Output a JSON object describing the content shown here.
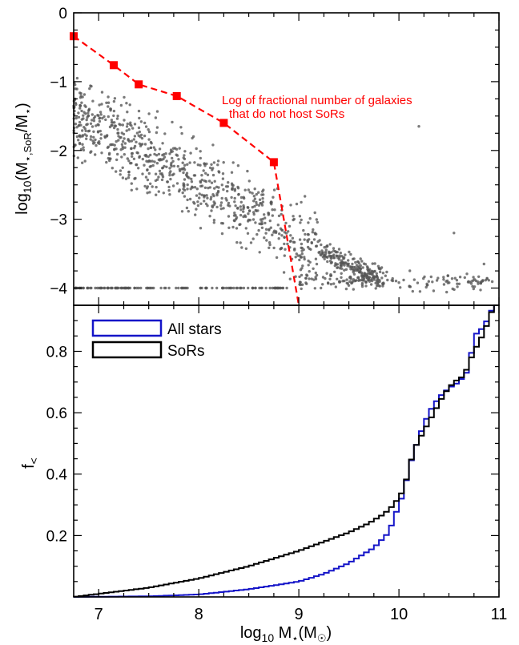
{
  "chart_data": [
    {
      "type": "scatter",
      "panel": "top",
      "ylabel": "log10(M⋆,SoR/M⋆)",
      "xlim": [
        6.75,
        11.0
      ],
      "ylim": [
        -4.25,
        0
      ],
      "yticks": [
        "0",
        "−1",
        "−2",
        "−3",
        "−4"
      ],
      "grid": false,
      "annotation": [
        "Log of fractional number of galaxies",
        "that do not host SoRs"
      ],
      "colors": {
        "points": "#555555",
        "line": "#ff0000"
      },
      "scatter_note": "about 1300 grey points; dense cloud declining from (6.8, −1.5) to (9.5, −3.8), floor row at y = −4 for x 6.75–8.9, sparse points x 9–11 near −3.7 to −4.0",
      "series": [
        {
          "name": "Log of fractional number of galaxies that do not host SoRs",
          "x": [
            6.75,
            7.15,
            7.4,
            7.78,
            8.25,
            8.75,
            9.0
          ],
          "y": [
            -0.34,
            -0.76,
            -1.04,
            -1.21,
            -1.6,
            -2.17,
            -4.25
          ]
        }
      ]
    },
    {
      "type": "line",
      "panel": "bottom",
      "xlabel": "log10 M⋆(M☉)",
      "ylabel": "f<",
      "xlim": [
        6.75,
        11.0
      ],
      "ylim": [
        0,
        0.95
      ],
      "xticks": [
        "7",
        "8",
        "9",
        "10",
        "11"
      ],
      "yticks": [
        "0.2",
        "0.4",
        "0.6",
        "0.8"
      ],
      "legend": {
        "position": "top-left",
        "entries": [
          "All stars",
          "SoRs"
        ]
      },
      "grid": false,
      "series": [
        {
          "name": "All stars",
          "color": "#1414c8",
          "x": [
            6.75,
            7.5,
            8.0,
            8.5,
            9.0,
            9.25,
            9.5,
            9.75,
            9.9,
            10.0,
            10.05,
            10.1,
            10.2,
            10.3,
            10.4,
            10.5,
            10.6,
            10.7,
            10.75,
            10.85,
            10.95,
            11.0
          ],
          "y": [
            0.0,
            0.002,
            0.008,
            0.025,
            0.05,
            0.075,
            0.11,
            0.16,
            0.21,
            0.3,
            0.34,
            0.42,
            0.52,
            0.6,
            0.65,
            0.68,
            0.7,
            0.74,
            0.85,
            0.88,
            0.95,
            0.95
          ]
        },
        {
          "name": "SoRs",
          "color": "#000000",
          "x": [
            6.75,
            7.0,
            7.5,
            8.0,
            8.5,
            9.0,
            9.25,
            9.5,
            9.7,
            9.85,
            9.95,
            10.05,
            10.15,
            10.25,
            10.35,
            10.45,
            10.55,
            10.65,
            10.75,
            10.85,
            10.95,
            11.0
          ],
          "y": [
            0.0,
            0.01,
            0.03,
            0.06,
            0.1,
            0.15,
            0.18,
            0.21,
            0.24,
            0.27,
            0.3,
            0.35,
            0.48,
            0.54,
            0.6,
            0.66,
            0.7,
            0.72,
            0.8,
            0.86,
            0.95,
            0.95
          ]
        }
      ]
    }
  ]
}
